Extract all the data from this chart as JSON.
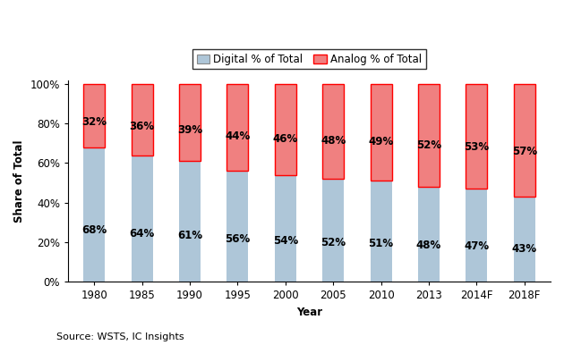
{
  "categories": [
    "1980",
    "1985",
    "1990",
    "1995",
    "2000",
    "2005",
    "2010",
    "2013",
    "2014F",
    "2018F"
  ],
  "digital_pct": [
    68,
    64,
    61,
    56,
    54,
    52,
    51,
    48,
    47,
    43
  ],
  "analog_pct": [
    32,
    36,
    39,
    44,
    46,
    48,
    49,
    52,
    53,
    57
  ],
  "digital_color": "#aec6d8",
  "analog_color": "#f08080",
  "digital_label": "Digital % of Total",
  "analog_label": "Analog % of Total",
  "ylabel": "Share of Total",
  "xlabel": "Year",
  "source_text": "Source: WSTS, IC Insights",
  "yticks": [
    0,
    20,
    40,
    60,
    80,
    100
  ],
  "ylim": [
    0,
    102
  ],
  "bar_width": 0.45,
  "analog_edgecolor": "#ff0000",
  "digital_edgecolor": "none",
  "label_fontsize": 8.5,
  "tick_fontsize": 8.5,
  "source_fontsize": 8
}
